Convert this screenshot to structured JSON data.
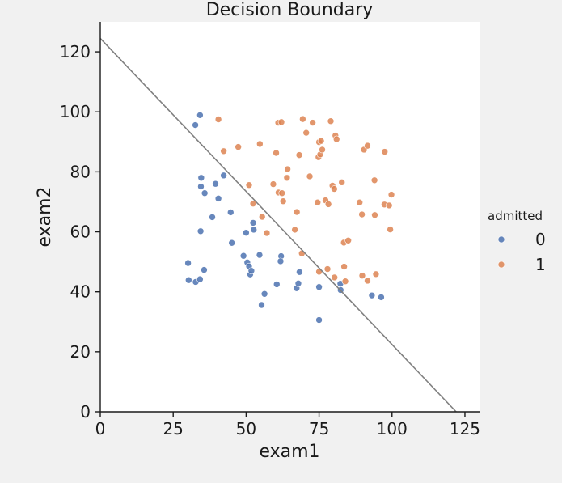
{
  "chart_data": {
    "type": "scatter",
    "title": "Decision Boundary",
    "xlabel": "exam1",
    "ylabel": "exam2",
    "xlim": [
      0,
      130
    ],
    "ylim": [
      0,
      130
    ],
    "xticks": [
      0,
      25,
      50,
      75,
      100,
      125
    ],
    "yticks": [
      0,
      20,
      40,
      60,
      80,
      100,
      120
    ],
    "grid": false,
    "legend": {
      "title": "admitted",
      "placement": "right-outside",
      "entries": [
        {
          "label": "0",
          "color": "#4c72b0"
        },
        {
          "label": "1",
          "color": "#dd8452"
        }
      ]
    },
    "boundary_line": {
      "color": "#808080",
      "points": [
        [
          0,
          124.5
        ],
        [
          122,
          0
        ]
      ]
    },
    "series": [
      {
        "name": "0",
        "color": "#4c72b0",
        "points": [
          [
            34.6,
            78.0
          ],
          [
            30.3,
            43.9
          ],
          [
            35.8,
            72.9
          ],
          [
            45.1,
            56.3
          ],
          [
            39.5,
            76.0
          ],
          [
            34.2,
            98.9
          ],
          [
            32.6,
            95.6
          ],
          [
            42.3,
            78.8
          ],
          [
            34.5,
            75.1
          ],
          [
            40.5,
            71.1
          ],
          [
            38.4,
            64.9
          ],
          [
            34.4,
            60.2
          ],
          [
            44.7,
            66.5
          ],
          [
            30.1,
            49.6
          ],
          [
            35.6,
            47.3
          ],
          [
            32.7,
            43.3
          ],
          [
            34.2,
            44.2
          ],
          [
            49.1,
            52.0
          ],
          [
            50.0,
            59.7
          ],
          [
            50.4,
            49.8
          ],
          [
            51.0,
            48.5
          ],
          [
            51.4,
            45.8
          ],
          [
            51.8,
            47.0
          ],
          [
            52.4,
            63.0
          ],
          [
            52.6,
            60.7
          ],
          [
            54.6,
            52.3
          ],
          [
            55.3,
            35.6
          ],
          [
            56.3,
            39.3
          ],
          [
            60.5,
            42.5
          ],
          [
            62.0,
            51.9
          ],
          [
            61.8,
            50.2
          ],
          [
            67.3,
            41.2
          ],
          [
            67.9,
            42.8
          ],
          [
            68.3,
            46.6
          ],
          [
            75.0,
            41.6
          ],
          [
            75.0,
            30.6
          ],
          [
            82.3,
            42.7
          ],
          [
            82.4,
            40.6
          ],
          [
            93.1,
            38.8
          ],
          [
            96.3,
            38.2
          ]
        ]
      },
      {
        "name": "1",
        "color": "#dd8452",
        "points": [
          [
            40.5,
            97.5
          ],
          [
            42.3,
            86.9
          ],
          [
            47.3,
            88.3
          ],
          [
            51.0,
            75.6
          ],
          [
            52.4,
            69.4
          ],
          [
            54.7,
            89.3
          ],
          [
            55.5,
            65.0
          ],
          [
            57.1,
            59.6
          ],
          [
            59.3,
            75.9
          ],
          [
            60.3,
            86.3
          ],
          [
            61.0,
            96.4
          ],
          [
            61.1,
            73.1
          ],
          [
            62.1,
            96.6
          ],
          [
            62.3,
            72.9
          ],
          [
            62.7,
            70.2
          ],
          [
            64.0,
            78.0
          ],
          [
            64.2,
            80.9
          ],
          [
            66.7,
            60.7
          ],
          [
            67.4,
            66.6
          ],
          [
            68.2,
            85.6
          ],
          [
            69.1,
            52.8
          ],
          [
            69.4,
            97.6
          ],
          [
            70.6,
            93.0
          ],
          [
            71.8,
            78.5
          ],
          [
            72.8,
            96.4
          ],
          [
            74.5,
            69.8
          ],
          [
            74.8,
            84.9
          ],
          [
            75.0,
            89.9
          ],
          [
            75.4,
            85.8
          ],
          [
            75.7,
            90.3
          ],
          [
            76.1,
            87.4
          ],
          [
            75.0,
            46.7
          ],
          [
            77.2,
            70.5
          ],
          [
            77.9,
            47.6
          ],
          [
            78.2,
            69.2
          ],
          [
            79.0,
            96.9
          ],
          [
            79.6,
            75.4
          ],
          [
            80.2,
            74.3
          ],
          [
            80.6,
            92.1
          ],
          [
            81.0,
            90.9
          ],
          [
            80.3,
            44.8
          ],
          [
            82.8,
            76.5
          ],
          [
            83.6,
            48.4
          ],
          [
            83.5,
            56.4
          ],
          [
            84.0,
            43.5
          ],
          [
            85.0,
            57.1
          ],
          [
            88.9,
            69.8
          ],
          [
            89.7,
            65.8
          ],
          [
            89.8,
            45.4
          ],
          [
            90.4,
            87.4
          ],
          [
            91.6,
            88.7
          ],
          [
            91.6,
            43.7
          ],
          [
            94.0,
            77.2
          ],
          [
            94.1,
            65.6
          ],
          [
            94.5,
            45.9
          ],
          [
            97.4,
            69.1
          ],
          [
            97.5,
            86.7
          ],
          [
            99.0,
            68.8
          ],
          [
            99.4,
            60.8
          ],
          [
            99.8,
            72.4
          ]
        ]
      }
    ]
  }
}
